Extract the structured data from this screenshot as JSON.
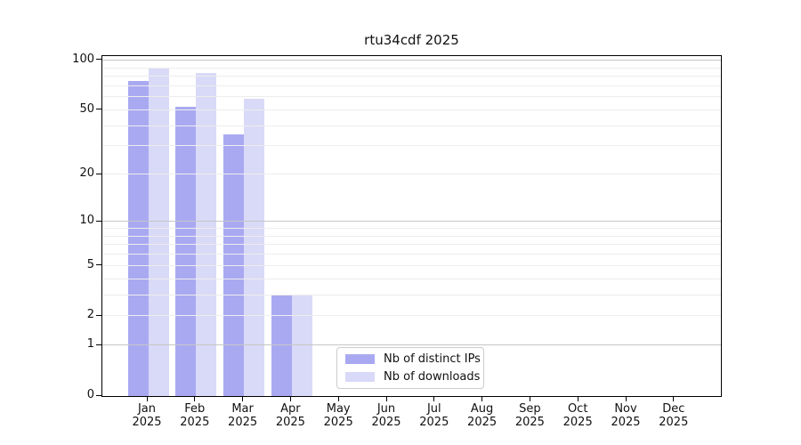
{
  "chart_data": {
    "type": "bar",
    "title": "rtu34cdf 2025",
    "categories": [
      "Jan",
      "Feb",
      "Mar",
      "Apr",
      "May",
      "Jun",
      "Jul",
      "Aug",
      "Sep",
      "Oct",
      "Nov",
      "Dec"
    ],
    "category_year": "2025",
    "series": [
      {
        "name": "Nb of distinct IPs",
        "color": "#a9a9f2",
        "values": [
          74,
          52,
          35,
          3,
          0,
          0,
          0,
          0,
          0,
          0,
          0,
          0
        ]
      },
      {
        "name": "Nb of downloads",
        "color": "#d9d9f8",
        "values": [
          88,
          83,
          58,
          3,
          0,
          0,
          0,
          0,
          0,
          0,
          0,
          0
        ]
      }
    ],
    "xlabel": "",
    "ylabel": "",
    "yscale": "log1p",
    "ylim": [
      0,
      106
    ],
    "yticks": [
      "0",
      "1",
      "2",
      "5",
      "10",
      "20",
      "50",
      "100"
    ],
    "minor_grid_values": [
      2,
      3,
      4,
      5,
      6,
      7,
      8,
      9,
      20,
      30,
      40,
      50,
      60,
      70,
      80,
      90
    ],
    "major_grid_values": [
      1,
      10,
      100
    ],
    "grid": "horizontal",
    "legend_position": "lower center"
  },
  "colors": {
    "background": "#ffffff",
    "spine": "#000000",
    "grid_minor": "#ededed",
    "grid_major": "#c6c6c6",
    "tick_text": "#111111",
    "legend_border": "#cccccc"
  }
}
